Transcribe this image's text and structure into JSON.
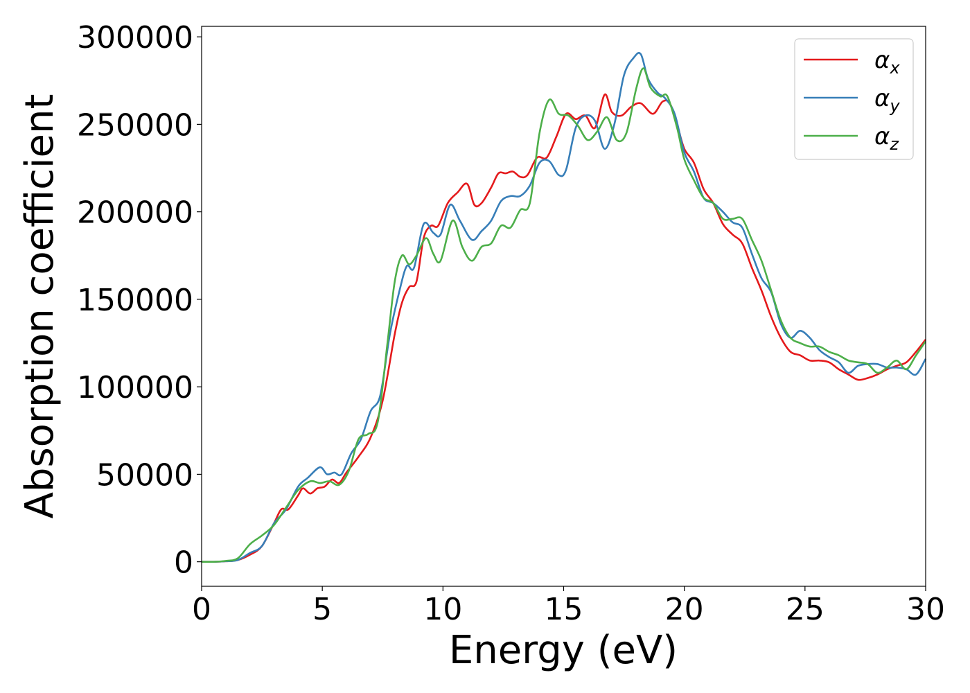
{
  "chart_data": {
    "type": "line",
    "title": "",
    "xlabel": "Energy (eV)",
    "ylabel": "Absorption coefficient",
    "xlim": [
      0,
      30
    ],
    "ylim": [
      -14000,
      306000
    ],
    "xticks": [
      0,
      5,
      10,
      15,
      20,
      25,
      30
    ],
    "yticks": [
      0,
      50000,
      100000,
      150000,
      200000,
      250000,
      300000
    ],
    "xtick_labels": [
      "0",
      "5",
      "10",
      "15",
      "20",
      "25",
      "30"
    ],
    "ytick_labels": [
      "0",
      "50000",
      "100000",
      "150000",
      "200000",
      "250000",
      "300000"
    ],
    "grid": false,
    "legend_position": "top-right",
    "series": [
      {
        "name": "αx",
        "base": "α",
        "sub": "x",
        "color": "#e41a1c",
        "points": [
          [
            0,
            0
          ],
          [
            0.5,
            0
          ],
          [
            1,
            300
          ],
          [
            1.5,
            1000
          ],
          [
            2,
            4000
          ],
          [
            2.5,
            9000
          ],
          [
            3,
            22000
          ],
          [
            3.3,
            30000
          ],
          [
            3.6,
            30000
          ],
          [
            4,
            38000
          ],
          [
            4.2,
            42000
          ],
          [
            4.5,
            39000
          ],
          [
            4.8,
            42000
          ],
          [
            5.1,
            43000
          ],
          [
            5.4,
            47000
          ],
          [
            5.7,
            45000
          ],
          [
            6,
            51000
          ],
          [
            6.5,
            60000
          ],
          [
            7,
            71000
          ],
          [
            7.5,
            92000
          ],
          [
            8,
            130000
          ],
          [
            8.3,
            148000
          ],
          [
            8.6,
            157000
          ],
          [
            8.9,
            160000
          ],
          [
            9.2,
            185000
          ],
          [
            9.5,
            192000
          ],
          [
            9.8,
            192000
          ],
          [
            10.2,
            205000
          ],
          [
            10.6,
            211000
          ],
          [
            11,
            216000
          ],
          [
            11.3,
            204000
          ],
          [
            11.6,
            205000
          ],
          [
            12,
            214000
          ],
          [
            12.3,
            222000
          ],
          [
            12.6,
            222000
          ],
          [
            12.9,
            223000
          ],
          [
            13.2,
            220000
          ],
          [
            13.5,
            221000
          ],
          [
            13.9,
            231000
          ],
          [
            14.3,
            231000
          ],
          [
            14.7,
            243000
          ],
          [
            15.1,
            256000
          ],
          [
            15.5,
            253000
          ],
          [
            15.9,
            255000
          ],
          [
            16.3,
            248000
          ],
          [
            16.7,
            267000
          ],
          [
            17,
            257000
          ],
          [
            17.4,
            255000
          ],
          [
            17.8,
            260000
          ],
          [
            18.2,
            262000
          ],
          [
            18.7,
            256000
          ],
          [
            19.1,
            263000
          ],
          [
            19.4,
            262000
          ],
          [
            19.7,
            250000
          ],
          [
            20,
            236000
          ],
          [
            20.4,
            228000
          ],
          [
            20.8,
            213000
          ],
          [
            21.2,
            205000
          ],
          [
            21.6,
            193000
          ],
          [
            22,
            187000
          ],
          [
            22.4,
            182000
          ],
          [
            22.8,
            168000
          ],
          [
            23.2,
            155000
          ],
          [
            23.6,
            140000
          ],
          [
            24,
            128000
          ],
          [
            24.4,
            120000
          ],
          [
            24.8,
            118000
          ],
          [
            25.2,
            115000
          ],
          [
            25.6,
            115000
          ],
          [
            26,
            114000
          ],
          [
            26.4,
            110000
          ],
          [
            26.8,
            107000
          ],
          [
            27.2,
            104000
          ],
          [
            27.6,
            105000
          ],
          [
            28,
            107000
          ],
          [
            28.4,
            110000
          ],
          [
            28.8,
            112000
          ],
          [
            29.2,
            114000
          ],
          [
            29.6,
            120000
          ],
          [
            30,
            127000
          ]
        ]
      },
      {
        "name": "αy",
        "base": "α",
        "sub": "y",
        "color": "#377eb8",
        "points": [
          [
            0,
            0
          ],
          [
            0.5,
            0
          ],
          [
            1,
            300
          ],
          [
            1.5,
            1000
          ],
          [
            2,
            5000
          ],
          [
            2.5,
            9000
          ],
          [
            3,
            22000
          ],
          [
            3.5,
            30000
          ],
          [
            4,
            43000
          ],
          [
            4.4,
            48000
          ],
          [
            4.9,
            54000
          ],
          [
            5.2,
            50000
          ],
          [
            5.5,
            51000
          ],
          [
            5.8,
            50000
          ],
          [
            6.2,
            62000
          ],
          [
            6.6,
            70000
          ],
          [
            7,
            86000
          ],
          [
            7.4,
            95000
          ],
          [
            7.8,
            130000
          ],
          [
            8.2,
            155000
          ],
          [
            8.5,
            169000
          ],
          [
            8.8,
            168000
          ],
          [
            9.2,
            193000
          ],
          [
            9.6,
            188000
          ],
          [
            9.9,
            187000
          ],
          [
            10.3,
            204000
          ],
          [
            10.7,
            195000
          ],
          [
            11.2,
            184000
          ],
          [
            11.6,
            189000
          ],
          [
            12,
            195000
          ],
          [
            12.4,
            206000
          ],
          [
            12.8,
            209000
          ],
          [
            13.2,
            209000
          ],
          [
            13.6,
            215000
          ],
          [
            14,
            228000
          ],
          [
            14.4,
            229000
          ],
          [
            14.8,
            221000
          ],
          [
            15.1,
            224000
          ],
          [
            15.5,
            248000
          ],
          [
            15.9,
            255000
          ],
          [
            16.3,
            252000
          ],
          [
            16.7,
            236000
          ],
          [
            17.1,
            250000
          ],
          [
            17.5,
            278000
          ],
          [
            17.9,
            288000
          ],
          [
            18.2,
            290000
          ],
          [
            18.5,
            276000
          ],
          [
            18.9,
            268000
          ],
          [
            19.2,
            265000
          ],
          [
            19.6,
            256000
          ],
          [
            20,
            234000
          ],
          [
            20.4,
            223000
          ],
          [
            20.8,
            208000
          ],
          [
            21.2,
            205000
          ],
          [
            21.6,
            200000
          ],
          [
            22,
            194000
          ],
          [
            22.4,
            191000
          ],
          [
            22.8,
            176000
          ],
          [
            23.2,
            162000
          ],
          [
            23.6,
            154000
          ],
          [
            24,
            136000
          ],
          [
            24.4,
            128000
          ],
          [
            24.8,
            132000
          ],
          [
            25.2,
            128000
          ],
          [
            25.6,
            121000
          ],
          [
            26,
            117000
          ],
          [
            26.4,
            114000
          ],
          [
            26.8,
            108000
          ],
          [
            27.2,
            112000
          ],
          [
            27.6,
            113000
          ],
          [
            28,
            113000
          ],
          [
            28.4,
            111000
          ],
          [
            28.8,
            111000
          ],
          [
            29.2,
            110000
          ],
          [
            29.6,
            107000
          ],
          [
            30,
            116000
          ]
        ]
      },
      {
        "name": "αz",
        "base": "α",
        "sub": "z",
        "color": "#4daf4a",
        "points": [
          [
            0,
            0
          ],
          [
            0.5,
            0
          ],
          [
            1,
            500
          ],
          [
            1.5,
            2000
          ],
          [
            2,
            10000
          ],
          [
            2.5,
            15000
          ],
          [
            3,
            21000
          ],
          [
            3.5,
            31000
          ],
          [
            4,
            41000
          ],
          [
            4.5,
            46000
          ],
          [
            4.9,
            45000
          ],
          [
            5.3,
            46000
          ],
          [
            5.7,
            44000
          ],
          [
            6.1,
            52000
          ],
          [
            6.5,
            70000
          ],
          [
            6.9,
            73000
          ],
          [
            7.3,
            80000
          ],
          [
            7.7,
            125000
          ],
          [
            8,
            160000
          ],
          [
            8.3,
            175000
          ],
          [
            8.6,
            170000
          ],
          [
            8.9,
            175000
          ],
          [
            9.3,
            185000
          ],
          [
            9.6,
            176000
          ],
          [
            9.9,
            172000
          ],
          [
            10.4,
            195000
          ],
          [
            10.8,
            180000
          ],
          [
            11.2,
            172000
          ],
          [
            11.6,
            180000
          ],
          [
            12,
            182000
          ],
          [
            12.4,
            192000
          ],
          [
            12.8,
            191000
          ],
          [
            13.2,
            201000
          ],
          [
            13.6,
            205000
          ],
          [
            14,
            245000
          ],
          [
            14.4,
            264000
          ],
          [
            14.8,
            256000
          ],
          [
            15.2,
            255000
          ],
          [
            15.6,
            249000
          ],
          [
            16,
            241000
          ],
          [
            16.4,
            246000
          ],
          [
            16.8,
            254000
          ],
          [
            17.2,
            241000
          ],
          [
            17.6,
            245000
          ],
          [
            18,
            270000
          ],
          [
            18.3,
            282000
          ],
          [
            18.6,
            271000
          ],
          [
            19,
            266000
          ],
          [
            19.3,
            266000
          ],
          [
            19.7,
            248000
          ],
          [
            20,
            230000
          ],
          [
            20.4,
            218000
          ],
          [
            20.8,
            208000
          ],
          [
            21.2,
            205000
          ],
          [
            21.6,
            196000
          ],
          [
            22,
            196000
          ],
          [
            22.4,
            196000
          ],
          [
            22.8,
            184000
          ],
          [
            23.2,
            172000
          ],
          [
            23.6,
            155000
          ],
          [
            24,
            138000
          ],
          [
            24.4,
            128000
          ],
          [
            24.8,
            125000
          ],
          [
            25.2,
            123000
          ],
          [
            25.6,
            123000
          ],
          [
            26,
            120000
          ],
          [
            26.4,
            118000
          ],
          [
            26.8,
            115000
          ],
          [
            27.2,
            114000
          ],
          [
            27.6,
            113000
          ],
          [
            28,
            108000
          ],
          [
            28.4,
            111000
          ],
          [
            28.8,
            115000
          ],
          [
            29.2,
            110000
          ],
          [
            29.6,
            118000
          ],
          [
            30,
            126000
          ]
        ]
      }
    ]
  }
}
